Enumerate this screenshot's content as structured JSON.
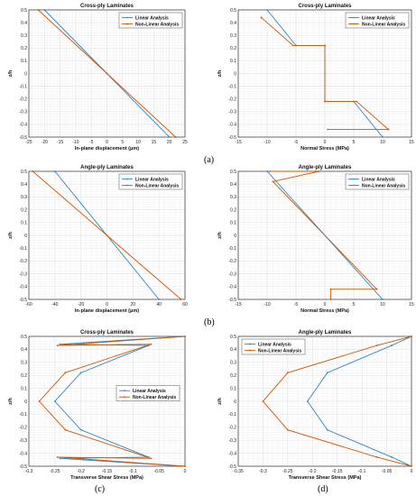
{
  "colors": {
    "linear": "#2e86c1",
    "nonlinear": "#d35400",
    "grid": "#e6e6e6",
    "axis": "#333333"
  },
  "panel_labels": [
    "(a)",
    "(b)",
    "(c)",
    "(d)"
  ],
  "chart_data": [
    {
      "id": "a-left",
      "type": "line",
      "title": "Cross-ply Laminates",
      "xlabel": "In-plane displacement (μm)",
      "ylabel": "z/h",
      "xlim": [
        -25,
        25
      ],
      "ylim": [
        -0.5,
        0.5
      ],
      "xticks": [
        -25,
        -20,
        -15,
        -10,
        -5,
        0,
        5,
        10,
        15,
        20,
        25
      ],
      "yticks": [
        -0.5,
        -0.4,
        -0.3,
        -0.2,
        -0.1,
        0,
        0.1,
        0.2,
        0.3,
        0.4,
        0.5
      ],
      "legend": "top-right",
      "grid": true,
      "series": [
        {
          "name": "Linear Analysis",
          "color": "linear",
          "x": [
            -20,
            0,
            20
          ],
          "y": [
            0.5,
            0,
            -0.5
          ]
        },
        {
          "name": "Non-Linear Analysis",
          "color": "nonlinear",
          "x": [
            -22,
            0,
            22
          ],
          "y": [
            0.5,
            0,
            -0.5
          ]
        }
      ]
    },
    {
      "id": "a-right",
      "type": "line",
      "title": "Cross-ply Laminates",
      "xlabel": "Normal Stress (MPa)",
      "ylabel": "z/h",
      "xlim": [
        -15,
        15
      ],
      "ylim": [
        -0.5,
        0.5
      ],
      "xticks": [
        -15,
        -10,
        -5,
        0,
        5,
        10,
        15
      ],
      "yticks": [
        -0.5,
        -0.4,
        -0.3,
        -0.2,
        -0.1,
        0,
        0.1,
        0.2,
        0.3,
        0.4,
        0.5
      ],
      "legend": "top-right",
      "grid": true,
      "series": [
        {
          "name": "Linear Analysis",
          "color": "linear",
          "x": [
            -10,
            -5,
            -5,
            0,
            0,
            5,
            5,
            10
          ],
          "y": [
            0.5,
            0.22,
            0.22,
            0.22,
            -0.22,
            -0.22,
            -0.22,
            -0.5
          ]
        },
        {
          "name": "Non-Linear Analysis",
          "color": "nonlinear",
          "x": [
            -11,
            -11,
            -5.5,
            0,
            0,
            0.5,
            5.5,
            11,
            11,
            0.5
          ],
          "y": [
            0.44,
            0.44,
            0.22,
            0.22,
            -0.22,
            -0.22,
            -0.22,
            -0.44,
            -0.44,
            -0.44
          ]
        }
      ]
    },
    {
      "id": "b-left",
      "type": "line",
      "title": "Angle-ply Laminates",
      "xlabel": "In-plane displacement (μm)",
      "ylabel": "z/h",
      "xlim": [
        -60,
        60
      ],
      "ylim": [
        -0.5,
        0.5
      ],
      "xticks": [
        -60,
        -40,
        -20,
        0,
        20,
        40,
        60
      ],
      "yticks": [
        -0.5,
        -0.4,
        -0.3,
        -0.2,
        -0.1,
        0,
        0.1,
        0.2,
        0.3,
        0.4,
        0.5
      ],
      "legend": "top-right",
      "grid": true,
      "series": [
        {
          "name": "Linear Analysis",
          "color": "linear",
          "x": [
            -40,
            0,
            40
          ],
          "y": [
            0.5,
            0,
            -0.5
          ]
        },
        {
          "name": "Non-Linear Analysis",
          "color": "nonlinear",
          "x": [
            -57,
            0,
            57
          ],
          "y": [
            0.5,
            0,
            -0.5
          ]
        }
      ]
    },
    {
      "id": "b-right",
      "type": "line",
      "title": "Angle-ply Laminates",
      "xlabel": "Normal Stress (MPa)",
      "ylabel": "z/h",
      "xlim": [
        -15,
        15
      ],
      "ylim": [
        -0.5,
        0.5
      ],
      "xticks": [
        -15,
        -10,
        -5,
        0,
        5,
        10,
        15
      ],
      "yticks": [
        -0.5,
        -0.4,
        -0.3,
        -0.2,
        -0.1,
        0,
        0.1,
        0.2,
        0.3,
        0.4,
        0.5
      ],
      "legend": "top-right",
      "grid": true,
      "series": [
        {
          "name": "Linear Analysis",
          "color": "linear",
          "x": [
            -10,
            10
          ],
          "y": [
            0.5,
            -0.5
          ]
        },
        {
          "name": "Non-Linear Analysis",
          "color": "nonlinear",
          "x": [
            -9.5,
            -1,
            -9,
            9,
            1,
            1
          ],
          "y": [
            0.5,
            0.5,
            0.42,
            -0.42,
            -0.42,
            -0.5
          ]
        }
      ]
    },
    {
      "id": "c",
      "type": "line",
      "title": "Cross-ply Laminates",
      "xlabel": "Transverse Shear Stress (MPa)",
      "ylabel": "z/h",
      "xlim": [
        -0.3,
        0
      ],
      "ylim": [
        -0.5,
        0.5
      ],
      "xticks": [
        -0.3,
        -0.25,
        -0.2,
        -0.15,
        -0.1,
        -0.05,
        0
      ],
      "yticks": [
        -0.5,
        -0.4,
        -0.3,
        -0.2,
        -0.1,
        0,
        0.1,
        0.2,
        0.3,
        0.4,
        0.5
      ],
      "legend": "center-right",
      "grid": true,
      "series": [
        {
          "name": "Linear Analysis",
          "color": "linear",
          "x": [
            0,
            -0.24,
            -0.07,
            -0.2,
            -0.25,
            -0.2,
            -0.07,
            -0.24,
            0
          ],
          "y": [
            0.5,
            0.44,
            0.43,
            0.22,
            0,
            -0.22,
            -0.43,
            -0.44,
            -0.5
          ]
        },
        {
          "name": "Non-Linear Analysis",
          "color": "nonlinear",
          "x": [
            0,
            -0.245,
            -0.065,
            -0.23,
            -0.28,
            -0.23,
            -0.065,
            -0.245,
            0
          ],
          "y": [
            0.5,
            0.43,
            0.44,
            0.22,
            0,
            -0.22,
            -0.44,
            -0.43,
            -0.5
          ]
        }
      ]
    },
    {
      "id": "d",
      "type": "line",
      "title": "Angle-ply Laminates",
      "xlabel": "Transverse Shear Stress (MPa)",
      "ylabel": "z/h",
      "xlim": [
        -0.35,
        0
      ],
      "ylim": [
        -0.5,
        0.5
      ],
      "xticks": [
        -0.35,
        -0.3,
        -0.25,
        -0.2,
        -0.15,
        -0.1,
        -0.05,
        0
      ],
      "yticks": [
        -0.5,
        -0.4,
        -0.3,
        -0.2,
        -0.1,
        0,
        0.1,
        0.2,
        0.3,
        0.4,
        0.5
      ],
      "legend": "top-left",
      "grid": true,
      "series": [
        {
          "name": "Linear Analysis",
          "color": "linear",
          "x": [
            0,
            -0.04,
            -0.17,
            -0.21,
            -0.17,
            -0.04,
            0
          ],
          "y": [
            0.5,
            0.43,
            0.22,
            0,
            -0.22,
            -0.43,
            -0.5
          ]
        },
        {
          "name": "Non-Linear Analysis",
          "color": "nonlinear",
          "x": [
            0,
            -0.07,
            -0.25,
            -0.3,
            -0.25,
            -0.07,
            0
          ],
          "y": [
            0.5,
            0.43,
            0.22,
            0,
            -0.22,
            -0.43,
            -0.5
          ]
        }
      ]
    }
  ]
}
